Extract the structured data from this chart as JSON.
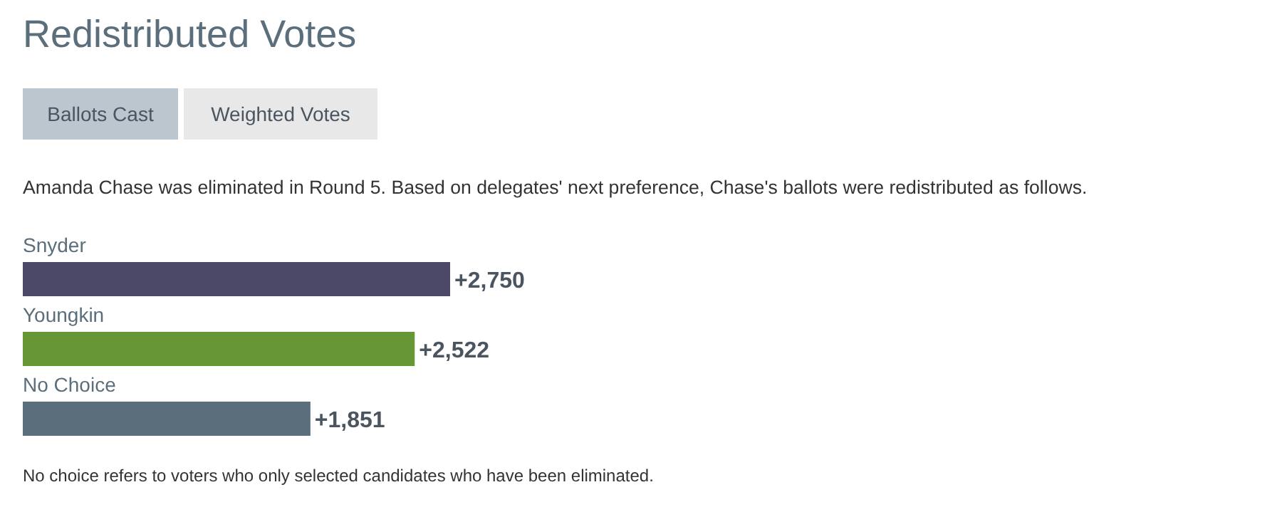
{
  "chart_data": {
    "type": "bar",
    "orientation": "horizontal",
    "title": "Redistributed Votes",
    "subtitle": "Amanda Chase was eliminated in Round 5. Based on delegates' next preference, Chase's ballots were redistributed as follows.",
    "categories": [
      "Snyder",
      "Youngkin",
      "No Choice"
    ],
    "values": [
      2750,
      2522,
      1851
    ],
    "colors": [
      "#4b4868",
      "#679634",
      "#5a6e7c"
    ],
    "value_labels": [
      "+2,750",
      "+2,522",
      "+1,851"
    ],
    "annotations": [
      "Ballots Cast",
      "Weighted Votes",
      "No choice refers to voters who only selected candidates who have been eliminated."
    ]
  }
}
